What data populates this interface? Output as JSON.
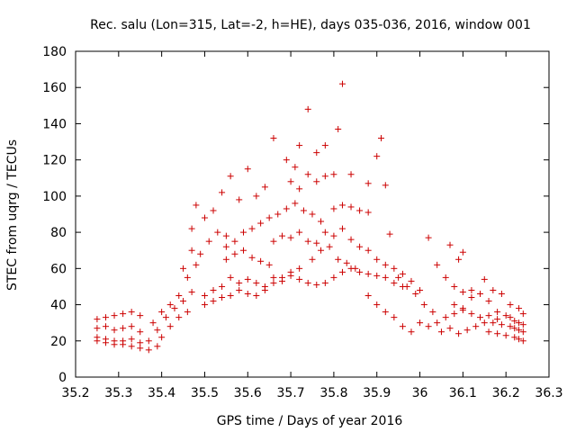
{
  "chart_data": {
    "type": "scatter",
    "title": "Rec. salu (Lon=315, Lat=-2, h=HE), days 035-036, 2016, window 001",
    "xlabel": "GPS time / Days of year 2016",
    "ylabel": "STEC from uqrg / TECUs",
    "xlim": [
      35.2,
      36.3
    ],
    "ylim": [
      0,
      180
    ],
    "xticks": [
      "35.2",
      "35.3",
      "35.4",
      "35.5",
      "35.6",
      "35.7",
      "35.8",
      "35.9",
      "36",
      "36.1",
      "36.2",
      "36.3"
    ],
    "yticks": [
      "0",
      "20",
      "40",
      "60",
      "80",
      "100",
      "120",
      "140",
      "160",
      "180"
    ],
    "grid": false,
    "legend": "none",
    "marker": "+",
    "color": "#cc0000",
    "series": [
      {
        "points": [
          [
            35.25,
            32
          ],
          [
            35.27,
            33
          ],
          [
            35.29,
            34
          ],
          [
            35.31,
            35
          ],
          [
            35.33,
            36
          ],
          [
            35.35,
            34
          ],
          [
            35.25,
            27
          ],
          [
            35.27,
            28
          ],
          [
            35.29,
            26
          ],
          [
            35.31,
            27
          ],
          [
            35.33,
            28
          ],
          [
            35.35,
            25
          ],
          [
            35.25,
            22
          ],
          [
            35.27,
            21
          ],
          [
            35.29,
            20
          ],
          [
            35.31,
            20
          ],
          [
            35.33,
            21
          ],
          [
            35.35,
            19
          ],
          [
            35.25,
            20
          ],
          [
            35.27,
            19
          ],
          [
            35.29,
            18
          ],
          [
            35.31,
            18
          ],
          [
            35.33,
            17
          ],
          [
            35.35,
            16
          ],
          [
            35.37,
            15
          ],
          [
            35.39,
            17
          ],
          [
            35.4,
            22
          ],
          [
            35.42,
            28
          ],
          [
            35.44,
            33
          ],
          [
            35.46,
            36
          ],
          [
            35.37,
            20
          ],
          [
            35.39,
            26
          ],
          [
            35.41,
            33
          ],
          [
            35.43,
            38
          ],
          [
            35.45,
            42
          ],
          [
            35.47,
            47
          ],
          [
            35.38,
            30
          ],
          [
            35.4,
            36
          ],
          [
            35.42,
            40
          ],
          [
            35.44,
            45
          ],
          [
            35.46,
            55
          ],
          [
            35.48,
            62
          ],
          [
            35.45,
            60
          ],
          [
            35.47,
            70
          ],
          [
            35.49,
            68
          ],
          [
            35.51,
            75
          ],
          [
            35.53,
            80
          ],
          [
            35.55,
            78
          ],
          [
            35.47,
            82
          ],
          [
            35.5,
            88
          ],
          [
            35.52,
            92
          ],
          [
            35.54,
            102
          ],
          [
            35.56,
            111
          ],
          [
            35.58,
            98
          ],
          [
            35.48,
            95
          ],
          [
            35.6,
            115
          ],
          [
            35.62,
            100
          ],
          [
            35.64,
            105
          ],
          [
            35.66,
            132
          ],
          [
            35.5,
            45
          ],
          [
            35.52,
            48
          ],
          [
            35.54,
            50
          ],
          [
            35.56,
            55
          ],
          [
            35.58,
            52
          ],
          [
            35.6,
            54
          ],
          [
            35.5,
            40
          ],
          [
            35.52,
            42
          ],
          [
            35.54,
            44
          ],
          [
            35.56,
            45
          ],
          [
            35.58,
            48
          ],
          [
            35.6,
            46
          ],
          [
            35.55,
            65
          ],
          [
            35.57,
            68
          ],
          [
            35.59,
            70
          ],
          [
            35.61,
            66
          ],
          [
            35.63,
            64
          ],
          [
            35.65,
            62
          ],
          [
            35.55,
            72
          ],
          [
            35.57,
            75
          ],
          [
            35.59,
            80
          ],
          [
            35.61,
            82
          ],
          [
            35.63,
            85
          ],
          [
            35.65,
            88
          ],
          [
            35.67,
            90
          ],
          [
            35.69,
            93
          ],
          [
            35.71,
            96
          ],
          [
            35.73,
            92
          ],
          [
            35.75,
            90
          ],
          [
            35.77,
            86
          ],
          [
            35.62,
            52
          ],
          [
            35.64,
            50
          ],
          [
            35.66,
            55
          ],
          [
            35.68,
            53
          ],
          [
            35.7,
            56
          ],
          [
            35.72,
            54
          ],
          [
            35.62,
            45
          ],
          [
            35.64,
            48
          ],
          [
            35.66,
            52
          ],
          [
            35.68,
            55
          ],
          [
            35.7,
            58
          ],
          [
            35.72,
            60
          ],
          [
            35.66,
            75
          ],
          [
            35.68,
            78
          ],
          [
            35.7,
            77
          ],
          [
            35.72,
            80
          ],
          [
            35.74,
            75
          ],
          [
            35.76,
            74
          ],
          [
            35.69,
            120
          ],
          [
            35.71,
            116
          ],
          [
            35.72,
            128
          ],
          [
            35.74,
            148
          ],
          [
            35.76,
            124
          ],
          [
            35.78,
            128
          ],
          [
            35.7,
            108
          ],
          [
            35.72,
            104
          ],
          [
            35.74,
            112
          ],
          [
            35.76,
            108
          ],
          [
            35.78,
            111
          ],
          [
            35.8,
            112
          ],
          [
            35.81,
            137
          ],
          [
            35.82,
            162
          ],
          [
            35.84,
            112
          ],
          [
            35.8,
            93
          ],
          [
            35.82,
            95
          ],
          [
            35.84,
            94
          ],
          [
            35.74,
            52
          ],
          [
            35.76,
            51
          ],
          [
            35.78,
            52
          ],
          [
            35.8,
            55
          ],
          [
            35.82,
            58
          ],
          [
            35.84,
            60
          ],
          [
            35.75,
            65
          ],
          [
            35.77,
            70
          ],
          [
            35.79,
            72
          ],
          [
            35.81,
            65
          ],
          [
            35.83,
            63
          ],
          [
            35.85,
            60
          ],
          [
            35.78,
            80
          ],
          [
            35.8,
            78
          ],
          [
            35.82,
            82
          ],
          [
            35.84,
            76
          ],
          [
            35.86,
            72
          ],
          [
            35.88,
            70
          ],
          [
            35.86,
            92
          ],
          [
            35.88,
            91
          ],
          [
            35.88,
            107
          ],
          [
            35.9,
            122
          ],
          [
            35.91,
            132
          ],
          [
            35.92,
            106
          ],
          [
            35.86,
            58
          ],
          [
            35.88,
            57
          ],
          [
            35.9,
            56
          ],
          [
            35.92,
            55
          ],
          [
            35.94,
            52
          ],
          [
            35.96,
            50
          ],
          [
            35.88,
            45
          ],
          [
            35.9,
            40
          ],
          [
            35.92,
            36
          ],
          [
            35.94,
            33
          ],
          [
            35.96,
            28
          ],
          [
            35.98,
            25
          ],
          [
            35.9,
            65
          ],
          [
            35.92,
            62
          ],
          [
            35.94,
            60
          ],
          [
            35.96,
            57
          ],
          [
            35.98,
            53
          ],
          [
            36.0,
            48
          ],
          [
            35.93,
            79
          ],
          [
            35.95,
            55
          ],
          [
            35.97,
            50
          ],
          [
            35.99,
            46
          ],
          [
            36.01,
            40
          ],
          [
            36.03,
            36
          ],
          [
            36.02,
            77
          ],
          [
            36.04,
            62
          ],
          [
            36.06,
            55
          ],
          [
            36.08,
            50
          ],
          [
            36.1,
            47
          ],
          [
            36.12,
            44
          ],
          [
            36.0,
            30
          ],
          [
            36.02,
            28
          ],
          [
            36.04,
            30
          ],
          [
            36.06,
            33
          ],
          [
            36.08,
            35
          ],
          [
            36.1,
            37
          ],
          [
            36.07,
            73
          ],
          [
            36.09,
            65
          ],
          [
            36.1,
            69
          ],
          [
            36.12,
            48
          ],
          [
            36.14,
            46
          ],
          [
            36.16,
            42
          ],
          [
            36.05,
            25
          ],
          [
            36.07,
            27
          ],
          [
            36.09,
            24
          ],
          [
            36.11,
            26
          ],
          [
            36.13,
            28
          ],
          [
            36.15,
            30
          ],
          [
            36.08,
            40
          ],
          [
            36.1,
            38
          ],
          [
            36.12,
            35
          ],
          [
            36.14,
            33
          ],
          [
            36.16,
            34
          ],
          [
            36.18,
            32
          ],
          [
            36.15,
            54
          ],
          [
            36.17,
            48
          ],
          [
            36.19,
            46
          ],
          [
            36.21,
            40
          ],
          [
            36.23,
            38
          ],
          [
            36.24,
            35
          ],
          [
            36.16,
            25
          ],
          [
            36.18,
            24
          ],
          [
            36.2,
            23
          ],
          [
            36.22,
            22
          ],
          [
            36.23,
            21
          ],
          [
            36.24,
            20
          ],
          [
            36.17,
            30
          ],
          [
            36.19,
            29
          ],
          [
            36.21,
            28
          ],
          [
            36.22,
            27
          ],
          [
            36.23,
            26
          ],
          [
            36.24,
            25
          ],
          [
            36.18,
            36
          ],
          [
            36.2,
            34
          ],
          [
            36.21,
            33
          ],
          [
            36.22,
            31
          ],
          [
            36.23,
            30
          ],
          [
            36.24,
            29
          ]
        ]
      }
    ]
  }
}
